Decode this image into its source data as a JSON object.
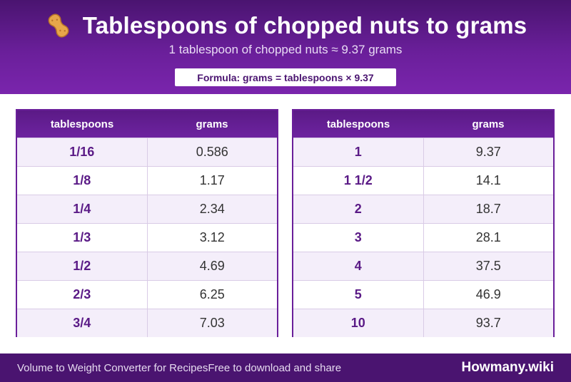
{
  "header": {
    "title": "Tablespoons of chopped nuts to grams",
    "subtitle": "1 tablespoon of chopped nuts ≈ 9.37 grams",
    "formula": "Formula: grams = tablespoons × 9.37",
    "icon": "peanut-icon"
  },
  "tables": {
    "columns": {
      "tablespoons": "tablespoons",
      "grams": "grams"
    },
    "left": [
      {
        "tbsp": "1/16",
        "grams": "0.586"
      },
      {
        "tbsp": "1/8",
        "grams": "1.17"
      },
      {
        "tbsp": "1/4",
        "grams": "2.34"
      },
      {
        "tbsp": "1/3",
        "grams": "3.12"
      },
      {
        "tbsp": "1/2",
        "grams": "4.69"
      },
      {
        "tbsp": "2/3",
        "grams": "6.25"
      },
      {
        "tbsp": "3/4",
        "grams": "7.03"
      }
    ],
    "right": [
      {
        "tbsp": "1",
        "grams": "9.37"
      },
      {
        "tbsp": "1 1/2",
        "grams": "14.1"
      },
      {
        "tbsp": "2",
        "grams": "18.7"
      },
      {
        "tbsp": "3",
        "grams": "28.1"
      },
      {
        "tbsp": "4",
        "grams": "37.5"
      },
      {
        "tbsp": "5",
        "grams": "46.9"
      },
      {
        "tbsp": "10",
        "grams": "93.7"
      }
    ]
  },
  "footer": {
    "tagline": "Volume to Weight Converter for Recipes",
    "share": "Free to download and share",
    "brand": "Howmany.wiki"
  },
  "colors": {
    "accent": "#6a1f9a",
    "header_dark": "#4a1470",
    "row_alt": "#f4eefa"
  }
}
